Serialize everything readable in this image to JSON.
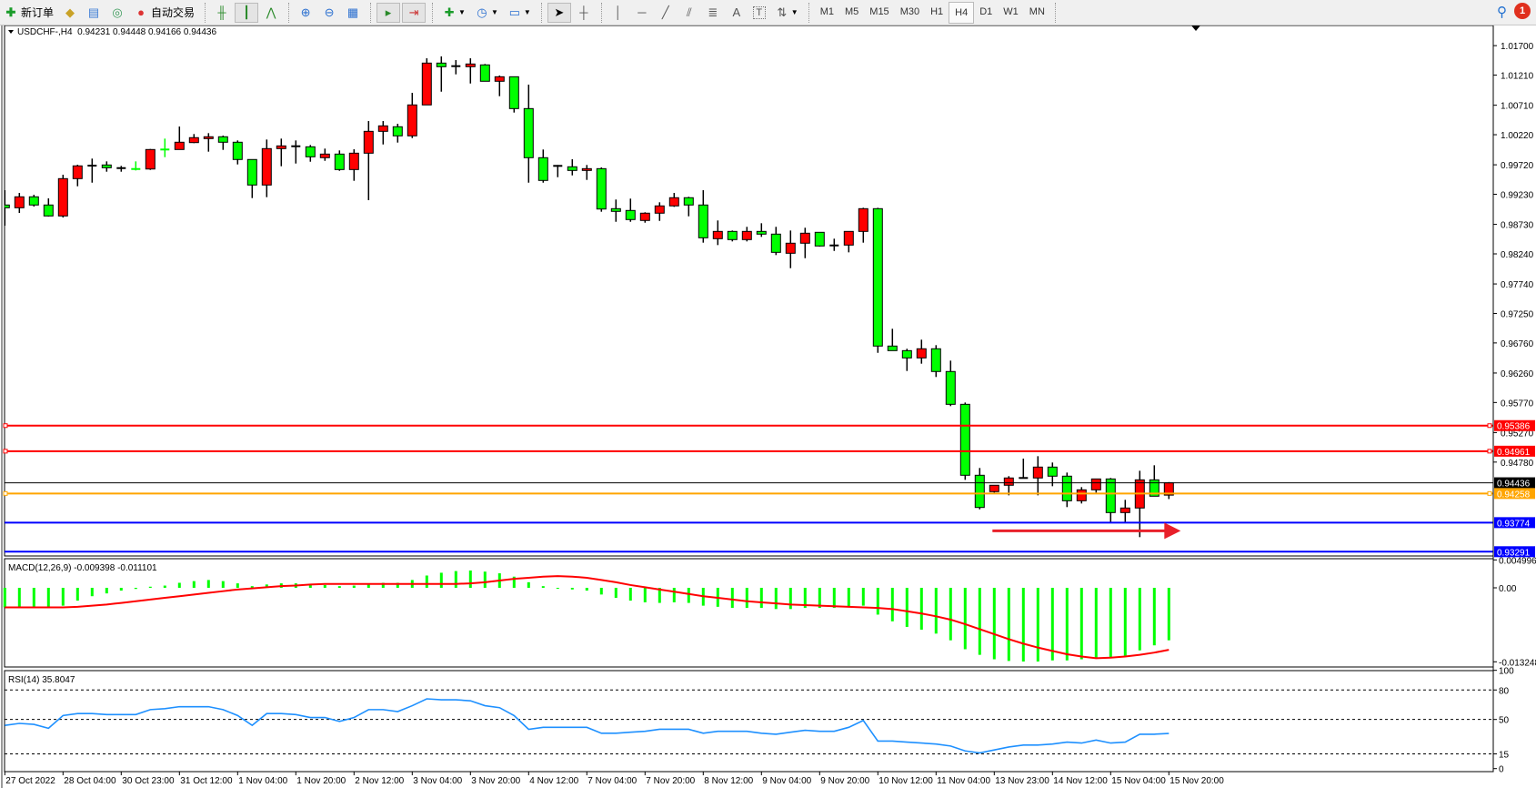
{
  "toolbar": {
    "new_order_label": "新订单",
    "auto_trading_label": "自动交易",
    "timeframes": [
      {
        "label": "M1"
      },
      {
        "label": "M5"
      },
      {
        "label": "M15"
      },
      {
        "label": "M30"
      },
      {
        "label": "H1"
      },
      {
        "label": "H4",
        "active": true
      },
      {
        "label": "D1"
      },
      {
        "label": "W1"
      },
      {
        "label": "MN"
      }
    ],
    "notification_count": "1",
    "icons": [
      "new-order-icon",
      "market-watch-icon",
      "data-window-icon",
      "navigator-icon",
      "auto-trading-icon",
      "bar-chart-icon",
      "candlestick-icon",
      "line-chart-icon",
      "zoom-in-icon",
      "zoom-out-icon",
      "tile-windows-icon",
      "auto-scroll-icon",
      "chart-shift-icon",
      "indicators-icon",
      "periods-icon",
      "templates-icon",
      "cursor-icon",
      "crosshair-icon",
      "vertical-line-icon",
      "horizontal-line-icon",
      "trendline-icon",
      "equidistant-channel-icon",
      "fibonacci-icon",
      "text-icon",
      "text-label-icon",
      "arrows-icon",
      "search-icon",
      "notification-icon"
    ]
  },
  "chart": {
    "symbol_header": "USDCHF-,H4  0.94231 0.94448 0.94166 0.94436",
    "colors": {
      "bull": "#ff0000",
      "bear": "#00ff00",
      "wick": "#000000",
      "macd_hist": "#00ff00",
      "macd_signal": "#ff0000",
      "rsi": "#1e90ff"
    }
  },
  "chart_data": [
    {
      "type": "candlestick",
      "title": "USDCHF-,H4",
      "ohlc_header": {
        "open": 0.94231,
        "high": 0.94448,
        "low": 0.94166,
        "close": 0.94436
      },
      "price_range": [
        0.9322,
        1.02035
      ],
      "price_ticks": [
        "1.01700",
        "1.01210",
        "1.00710",
        "1.00220",
        "0.99720",
        "0.99230",
        "0.98730",
        "0.98240",
        "0.97740",
        "0.97250",
        "0.96760",
        "0.96260",
        "0.95770",
        "0.95270",
        "0.94780"
      ],
      "time_labels": [
        "27 Oct 2022",
        "28 Oct 04:00",
        "30 Oct 23:00",
        "31 Oct 12:00",
        "1 Nov 04:00",
        "1 Nov 20:00",
        "2 Nov 12:00",
        "3 Nov 04:00",
        "3 Nov 20:00",
        "4 Nov 12:00",
        "7 Nov 04:00",
        "7 Nov 20:00",
        "8 Nov 12:00",
        "9 Nov 04:00",
        "9 Nov 20:00",
        "10 Nov 12:00",
        "11 Nov 04:00",
        "13 Nov 23:00",
        "14 Nov 12:00",
        "15 Nov 04:00",
        "15 Nov 20:00"
      ],
      "candles_ohlc": [
        [
          0.99052,
          0.99298,
          0.98708,
          0.99006
        ],
        [
          0.99006,
          0.99253,
          0.9892,
          0.99188
        ],
        [
          0.99188,
          0.99222,
          0.99026,
          0.99052
        ],
        [
          0.99052,
          0.99162,
          0.9886,
          0.9887
        ],
        [
          0.9887,
          0.99555,
          0.98844,
          0.9949
        ],
        [
          0.9949,
          0.99721,
          0.99363,
          0.99702
        ],
        [
          0.99706,
          0.99823,
          0.99423,
          0.99706
        ],
        [
          0.99717,
          0.99777,
          0.99605,
          0.99671
        ],
        [
          0.99665,
          0.99702,
          0.99605,
          0.99665
        ],
        [
          0.9965,
          0.99777,
          0.99626,
          0.99649
        ],
        [
          0.9965,
          0.99983,
          0.99635,
          0.99974
        ],
        [
          0.99974,
          1.00155,
          0.99847,
          0.99973
        ],
        [
          0.99974,
          1.00356,
          0.99974,
          1.00095
        ],
        [
          1.00089,
          1.00231,
          1.0008,
          1.00171
        ],
        [
          1.00155,
          1.00246,
          0.99938,
          1.00186
        ],
        [
          1.00186,
          1.00205,
          0.99968,
          1.00095
        ],
        [
          1.00095,
          1.00125,
          0.99726,
          0.99808
        ],
        [
          0.99808,
          0.99812,
          0.99167,
          0.99384
        ],
        [
          0.99384,
          1.0014,
          0.99182,
          0.99989
        ],
        [
          0.99989,
          1.00155,
          0.99696,
          1.00034
        ],
        [
          1.00028,
          1.00125,
          0.99741,
          1.00028
        ],
        [
          1.00019,
          1.00049,
          0.99771,
          0.99853
        ],
        [
          0.99838,
          0.99989,
          0.99786,
          0.99898
        ],
        [
          0.99898,
          0.99959,
          0.9962,
          0.99641
        ],
        [
          0.99641,
          0.99978,
          0.99454,
          0.99913
        ],
        [
          0.99913,
          1.00447,
          0.99132,
          1.00276
        ],
        [
          1.00276,
          1.00447,
          1.00058,
          1.00367
        ],
        [
          1.00352,
          1.00402,
          1.00089,
          1.00201
        ],
        [
          1.00201,
          1.00916,
          1.00164,
          1.00715
        ],
        [
          1.00715,
          1.0149,
          1.00715,
          1.0141
        ],
        [
          1.0141,
          1.01521,
          1.00935,
          1.0135
        ],
        [
          1.01359,
          1.0146,
          1.01223,
          1.01359
        ],
        [
          1.0135,
          1.0149,
          1.01071,
          1.01395
        ],
        [
          1.0138,
          1.01395,
          1.01108,
          1.01108
        ],
        [
          1.01108,
          1.01203,
          1.0086,
          1.01183
        ],
        [
          1.01183,
          1.01183,
          1.00588,
          1.00654
        ],
        [
          1.00654,
          1.01052,
          0.99423,
          0.99838
        ],
        [
          0.99838,
          0.99974,
          0.99423,
          0.9946
        ],
        [
          0.99702,
          0.99717,
          0.99514,
          0.99702
        ],
        [
          0.99687,
          0.99812,
          0.99544,
          0.99626
        ],
        [
          0.99626,
          0.99717,
          0.99469,
          0.99656
        ],
        [
          0.99656,
          0.99676,
          0.9894,
          0.98985
        ],
        [
          0.98991,
          0.99143,
          0.98773,
          0.98946
        ],
        [
          0.98961,
          0.99158,
          0.98773,
          0.9881
        ],
        [
          0.98795,
          0.98931,
          0.98758,
          0.98916
        ],
        [
          0.98916,
          0.99097,
          0.98788,
          0.99037
        ],
        [
          0.99037,
          0.99253,
          0.99021,
          0.99173
        ],
        [
          0.99173,
          0.99188,
          0.98864,
          0.99052
        ],
        [
          0.99052,
          0.99298,
          0.98426,
          0.98507
        ],
        [
          0.98492,
          0.98795,
          0.98386,
          0.98613
        ],
        [
          0.98613,
          0.98628,
          0.98447,
          0.98477
        ],
        [
          0.98477,
          0.98689,
          0.98447,
          0.98613
        ],
        [
          0.98613,
          0.98749,
          0.98522,
          0.98568
        ],
        [
          0.98568,
          0.98689,
          0.9822,
          0.98265
        ],
        [
          0.9825,
          0.98628,
          0.98002,
          0.98417
        ],
        [
          0.98417,
          0.98674,
          0.98168,
          0.98583
        ],
        [
          0.98598,
          0.98598,
          0.98361,
          0.98371
        ],
        [
          0.9838,
          0.98492,
          0.98289,
          0.9838
        ],
        [
          0.98386,
          0.98613,
          0.98265,
          0.98613
        ],
        [
          0.98613,
          0.99006,
          0.98426,
          0.98991
        ],
        [
          0.98991,
          0.99006,
          0.96596,
          0.96708
        ],
        [
          0.96708,
          0.96995,
          0.96632,
          0.96632
        ],
        [
          0.96632,
          0.96663,
          0.96294,
          0.96511
        ],
        [
          0.96511,
          0.96814,
          0.96415,
          0.96663
        ],
        [
          0.96663,
          0.96723,
          0.96194,
          0.96285
        ],
        [
          0.96285,
          0.96466,
          0.9571,
          0.9574
        ],
        [
          0.9574,
          0.9577,
          0.94485,
          0.94561
        ],
        [
          0.94561,
          0.94682,
          0.93995,
          0.94026
        ],
        [
          0.94289,
          0.94395,
          0.94273,
          0.94395
        ],
        [
          0.94395,
          0.94546,
          0.94228,
          0.94516
        ],
        [
          0.94516,
          0.94838,
          0.94516,
          0.94516
        ],
        [
          0.94516,
          0.94878,
          0.94228,
          0.94697
        ],
        [
          0.94697,
          0.94773,
          0.94379,
          0.94546
        ],
        [
          0.94546,
          0.94606,
          0.94032,
          0.94137
        ],
        [
          0.94137,
          0.94364,
          0.94092,
          0.94319
        ],
        [
          0.94319,
          0.945,
          0.94273,
          0.945
        ],
        [
          0.945,
          0.94516,
          0.93775,
          0.93941
        ],
        [
          0.93941,
          0.94153,
          0.93775,
          0.94017
        ],
        [
          0.94017,
          0.94636,
          0.93533,
          0.94485
        ],
        [
          0.94485,
          0.94727,
          0.94213,
          0.94213
        ],
        [
          0.94231,
          0.94448,
          0.94166,
          0.94436
        ]
      ],
      "hlines": [
        {
          "price": 0.95386,
          "label": "0.95386",
          "color": "#ff0000",
          "selected": true
        },
        {
          "price": 0.94961,
          "label": "0.94961",
          "color": "#ff0000",
          "selected": true
        },
        {
          "price": 0.94436,
          "label": "0.94436",
          "color": "#000000",
          "selected": false
        },
        {
          "price": 0.94258,
          "label": "0.94258",
          "color": "#ffa500",
          "selected": true
        },
        {
          "price": 0.93774,
          "label": "0.93774",
          "color": "#0000ff",
          "selected": false
        },
        {
          "price": 0.93291,
          "label": "0.93291",
          "color": "#0000ff",
          "selected": false
        }
      ],
      "arrow": {
        "color": "#e8202a",
        "direction": "right",
        "from_bar": 68,
        "to_bar": 80,
        "price": 0.93638
      }
    },
    {
      "type": "bar",
      "title": "MACD(12,26,9) -0.009398 -0.011101",
      "range": [
        -0.014176,
        0.005214
      ],
      "axis_labels": [
        {
          "value": 0.004996,
          "label": "0.004996"
        },
        {
          "value": 0,
          "label": "0.00"
        },
        {
          "value": -0.013248,
          "label": "-0.013248"
        }
      ],
      "histogram": [
        -0.0035,
        -0.0035,
        -0.0035,
        -0.0035,
        -0.0032,
        -0.0023,
        -0.0015,
        -0.001,
        -0.0005,
        -0.0002,
        0.0002,
        0.0004,
        0.0009,
        0.0012,
        0.0014,
        0.0012,
        0.0008,
        0.0003,
        0.0006,
        0.0008,
        0.0008,
        0.0006,
        0.0005,
        0.0003,
        0.0004,
        0.0008,
        0.0009,
        0.0009,
        0.0014,
        0.0022,
        0.0027,
        0.003,
        0.0031,
        0.0029,
        0.0026,
        0.002,
        0.001,
        0.0003,
        -0.0001,
        -0.0003,
        -0.0005,
        -0.0012,
        -0.0018,
        -0.0023,
        -0.0026,
        -0.0027,
        -0.0026,
        -0.0027,
        -0.0032,
        -0.0034,
        -0.0036,
        -0.0036,
        -0.0036,
        -0.0038,
        -0.0038,
        -0.0036,
        -0.0036,
        -0.0036,
        -0.0035,
        -0.0032,
        -0.0048,
        -0.006,
        -0.007,
        -0.0075,
        -0.0082,
        -0.0094,
        -0.011,
        -0.012,
        -0.0128,
        -0.0131,
        -0.0132,
        -0.0132,
        -0.013,
        -0.013,
        -0.0128,
        -0.0125,
        -0.0126,
        -0.0122,
        -0.0112,
        -0.0103,
        -0.009398
      ],
      "signal": [
        -0.0035,
        -0.0035,
        -0.0035,
        -0.0035,
        -0.0035,
        -0.0034,
        -0.0032,
        -0.003,
        -0.0027,
        -0.0024,
        -0.0021,
        -0.0018,
        -0.0015,
        -0.0012,
        -0.0009,
        -0.0006,
        -0.0003,
        -0.0001,
        0.0001,
        0.0003,
        0.0004,
        0.0006,
        0.0007,
        0.0007,
        0.0007,
        0.0007,
        0.0007,
        0.0007,
        0.0007,
        0.0007,
        0.0007,
        0.0007,
        0.0008,
        0.001,
        0.0013,
        0.0016,
        0.0018,
        0.002,
        0.0021,
        0.002,
        0.0018,
        0.0014,
        0.001,
        0.0005,
        0.0001,
        -0.0003,
        -0.0007,
        -0.0011,
        -0.0015,
        -0.0018,
        -0.0021,
        -0.0024,
        -0.0026,
        -0.0028,
        -0.003,
        -0.0031,
        -0.0032,
        -0.0033,
        -0.0034,
        -0.0035,
        -0.0036,
        -0.0038,
        -0.0042,
        -0.0046,
        -0.0051,
        -0.0057,
        -0.0065,
        -0.0074,
        -0.0083,
        -0.0092,
        -0.01,
        -0.0107,
        -0.0113,
        -0.0119,
        -0.0123,
        -0.0126,
        -0.0125,
        -0.0123,
        -0.012,
        -0.0116,
        -0.011101
      ]
    },
    {
      "type": "line",
      "title": "RSI(14) 35.8047",
      "range": [
        -3.06,
        99.7
      ],
      "levels": [
        80,
        50,
        15
      ],
      "axis_labels": [
        "100",
        "80",
        "50",
        "15",
        "0"
      ],
      "axis_values": [
        100,
        80,
        50,
        15,
        0
      ],
      "values": [
        44,
        46,
        45,
        41,
        54,
        56,
        56,
        55,
        55,
        55,
        60,
        61,
        63,
        63,
        63,
        60,
        54,
        44,
        56,
        56,
        55,
        52,
        52,
        48,
        52,
        60,
        60,
        58,
        64,
        71,
        70,
        70,
        69,
        64,
        62,
        54,
        40,
        42,
        42,
        42,
        42,
        36,
        36,
        37,
        38,
        40,
        40,
        40,
        36,
        38,
        38,
        38,
        36,
        35,
        37,
        39,
        38,
        38,
        42,
        49,
        28,
        28,
        27,
        26,
        25,
        23,
        18,
        16,
        19,
        22,
        24,
        24,
        25,
        27,
        26,
        29,
        26,
        27,
        35,
        35,
        35.8047
      ]
    }
  ]
}
